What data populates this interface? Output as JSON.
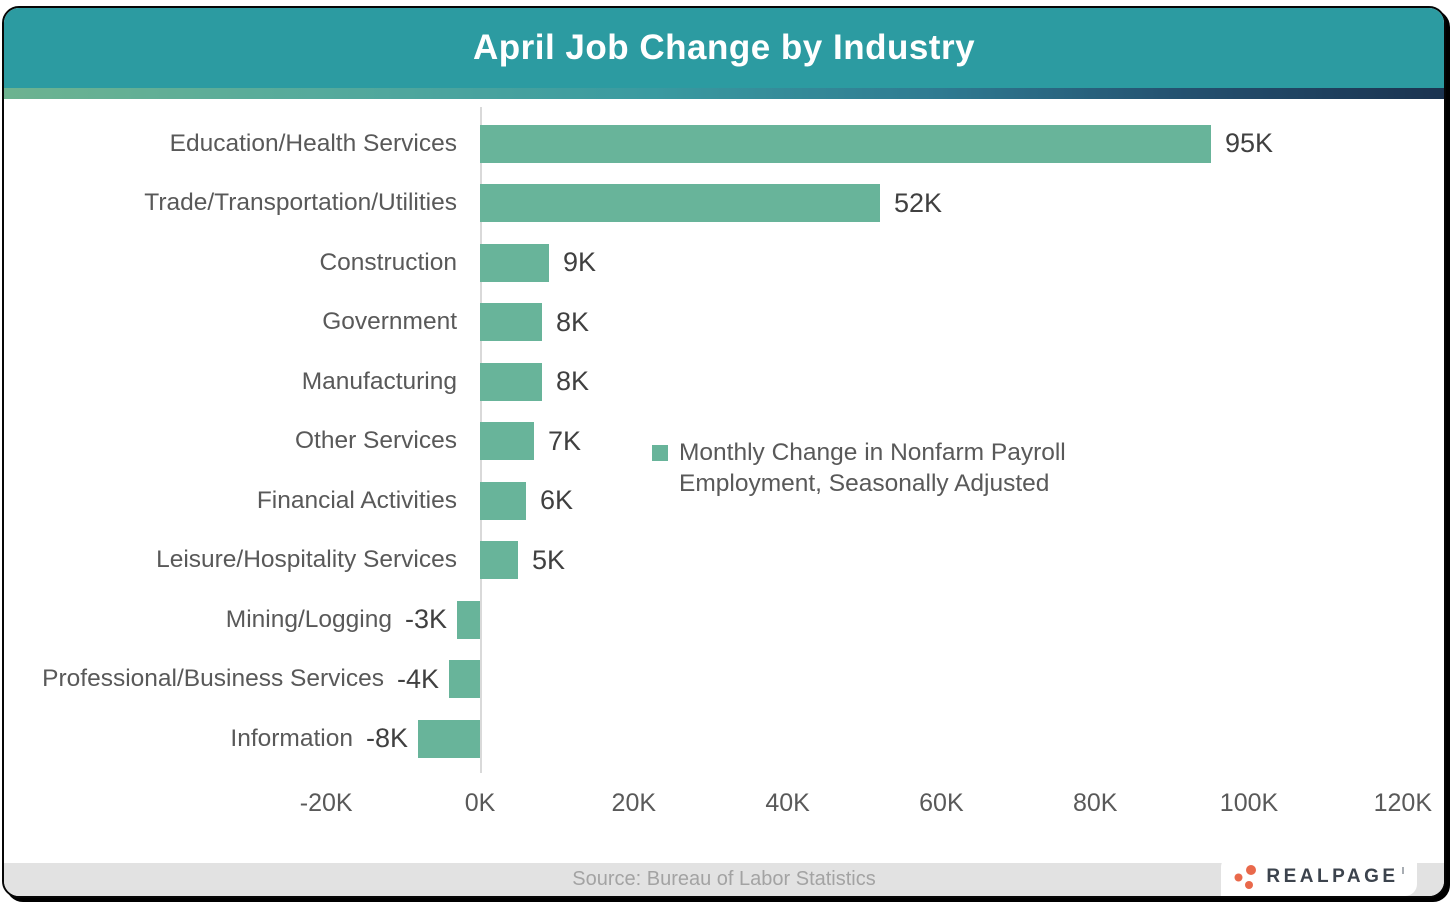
{
  "header": {
    "title": "April Job Change by Industry"
  },
  "chart_data": {
    "type": "bar",
    "orientation": "horizontal",
    "title": "April Job Change by Industry",
    "categories": [
      "Education/Health Services",
      "Trade/Transportation/Utilities",
      "Construction",
      "Government",
      "Manufacturing",
      "Other Services",
      "Financial Activities",
      "Leisure/Hospitality Services",
      "Mining/Logging",
      "Professional/Business Services",
      "Information"
    ],
    "values": [
      95,
      52,
      9,
      8,
      8,
      7,
      6,
      5,
      -3,
      -4,
      -8
    ],
    "value_labels": [
      "95K",
      "52K",
      "9K",
      "8K",
      "8K",
      "7K",
      "6K",
      "5K",
      "-3K",
      "-4K",
      "-8K"
    ],
    "unit": "thousands of jobs",
    "xlim": [
      -20,
      120
    ],
    "x_ticks": {
      "labels": [
        "-20K",
        "0K",
        "20K",
        "40K",
        "60K",
        "80K",
        "100K",
        "120K"
      ],
      "values": [
        -20,
        0,
        20,
        40,
        60,
        80,
        100,
        120
      ]
    },
    "legend": {
      "label": "Monthly Change in Nonfarm Payroll Employment, Seasonally Adjusted",
      "position": "center-right"
    },
    "bar_color": "#68b49a",
    "grid": false
  },
  "footer": {
    "source": "Source: Bureau of Labor Statistics"
  },
  "logo": {
    "text": "REALPAGE",
    "dot_color": "#e9694b"
  },
  "colors": {
    "header_bg": "#2c9ba1",
    "bar": "#68b49a",
    "accent_gradient": [
      "#6db390",
      "#3a9aa0",
      "#1b3350"
    ],
    "footer_bg": "#e2e2e2",
    "axis_line": "#d9d9d9",
    "category_text": "#595959",
    "value_text": "#404040"
  }
}
